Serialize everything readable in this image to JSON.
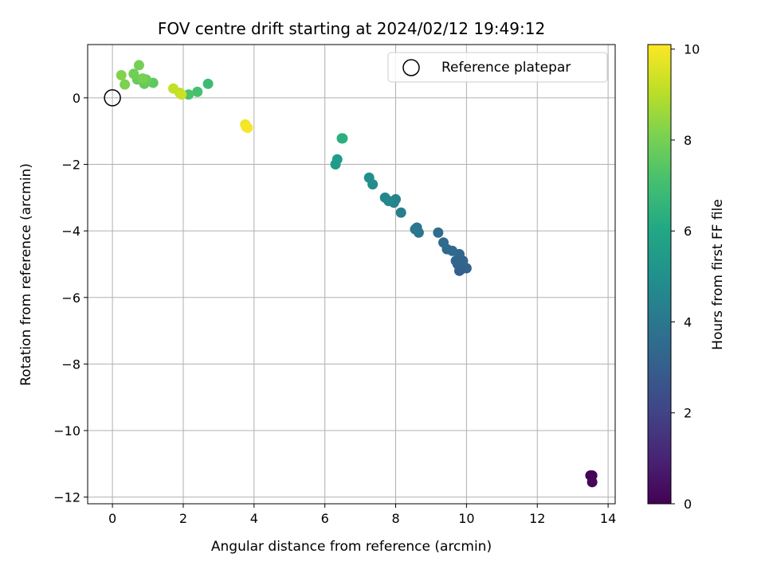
{
  "chart_data": {
    "type": "scatter",
    "title": "FOV centre drift starting at 2024/02/12 19:49:12",
    "xlabel": "Angular distance from reference (arcmin)",
    "ylabel": "Rotation from reference (arcmin)",
    "xlim": [
      -0.7,
      14.2
    ],
    "ylim": [
      -12.2,
      1.6
    ],
    "xticks": [
      0,
      2,
      4,
      6,
      8,
      10,
      12,
      14
    ],
    "yticks": [
      -12,
      -10,
      -8,
      -6,
      -4,
      -2,
      0
    ],
    "x_tick_labels": [
      "0",
      "2",
      "4",
      "6",
      "8",
      "10",
      "12",
      "14"
    ],
    "y_tick_labels": [
      "−12",
      "−10",
      "−8",
      "−6",
      "−4",
      "−2",
      "0"
    ],
    "grid": true,
    "legend": {
      "placement": "top-right",
      "label": "Reference platepar"
    },
    "reference_point": {
      "x": 0,
      "y": 0
    },
    "colorbar": {
      "label": "Hours from first FF file",
      "range": [
        0,
        10.1
      ],
      "ticks": [
        0,
        2,
        4,
        6,
        8,
        10
      ],
      "tick_labels": [
        "0",
        "2",
        "4",
        "6",
        "8",
        "10"
      ],
      "colormap": "viridis"
    },
    "points": [
      {
        "x": 13.5,
        "y": -11.35,
        "hours": 0.05
      },
      {
        "x": 13.55,
        "y": -11.35,
        "hours": 0.1
      },
      {
        "x": 13.55,
        "y": -11.55,
        "hours": 0.15
      },
      {
        "x": 9.85,
        "y": -5.15,
        "hours": 3.0
      },
      {
        "x": 9.8,
        "y": -5.2,
        "hours": 3.05
      },
      {
        "x": 9.9,
        "y": -5.05,
        "hours": 3.1
      },
      {
        "x": 10.0,
        "y": -5.12,
        "hours": 3.15
      },
      {
        "x": 9.75,
        "y": -5.0,
        "hours": 3.2
      },
      {
        "x": 9.7,
        "y": -4.9,
        "hours": 3.25
      },
      {
        "x": 9.9,
        "y": -4.9,
        "hours": 3.3
      },
      {
        "x": 9.8,
        "y": -4.7,
        "hours": 3.35
      },
      {
        "x": 9.6,
        "y": -4.6,
        "hours": 3.4
      },
      {
        "x": 9.45,
        "y": -4.55,
        "hours": 3.45
      },
      {
        "x": 9.35,
        "y": -4.35,
        "hours": 3.5
      },
      {
        "x": 9.2,
        "y": -4.05,
        "hours": 3.6
      },
      {
        "x": 8.6,
        "y": -3.9,
        "hours": 3.9
      },
      {
        "x": 8.65,
        "y": -4.05,
        "hours": 3.95
      },
      {
        "x": 8.55,
        "y": -3.95,
        "hours": 4.0
      },
      {
        "x": 8.15,
        "y": -3.45,
        "hours": 4.3
      },
      {
        "x": 8.0,
        "y": -3.05,
        "hours": 4.5
      },
      {
        "x": 7.95,
        "y": -3.15,
        "hours": 4.55
      },
      {
        "x": 7.7,
        "y": -3.0,
        "hours": 4.6
      },
      {
        "x": 7.8,
        "y": -3.1,
        "hours": 4.65
      },
      {
        "x": 7.35,
        "y": -2.6,
        "hours": 4.9
      },
      {
        "x": 7.25,
        "y": -2.4,
        "hours": 5.0
      },
      {
        "x": 6.3,
        "y": -2.0,
        "hours": 5.5
      },
      {
        "x": 6.35,
        "y": -1.85,
        "hours": 5.55
      },
      {
        "x": 6.5,
        "y": -1.22,
        "hours": 6.3
      },
      {
        "x": 6.48,
        "y": -1.22,
        "hours": 6.35
      },
      {
        "x": 2.7,
        "y": 0.42,
        "hours": 6.9
      },
      {
        "x": 2.4,
        "y": 0.18,
        "hours": 7.1
      },
      {
        "x": 2.15,
        "y": 0.1,
        "hours": 7.2
      },
      {
        "x": 1.15,
        "y": 0.45,
        "hours": 7.6
      },
      {
        "x": 0.9,
        "y": 0.42,
        "hours": 7.7
      },
      {
        "x": 0.7,
        "y": 0.55,
        "hours": 7.75
      },
      {
        "x": 0.95,
        "y": 0.55,
        "hours": 7.8
      },
      {
        "x": 0.6,
        "y": 0.72,
        "hours": 7.9
      },
      {
        "x": 0.75,
        "y": 0.98,
        "hours": 7.95
      },
      {
        "x": 0.85,
        "y": 0.58,
        "hours": 8.0
      },
      {
        "x": 0.35,
        "y": 0.4,
        "hours": 8.1
      },
      {
        "x": 0.25,
        "y": 0.68,
        "hours": 8.2
      },
      {
        "x": 1.9,
        "y": 0.15,
        "hours": 9.1
      },
      {
        "x": 1.72,
        "y": 0.28,
        "hours": 9.2
      },
      {
        "x": 1.95,
        "y": 0.1,
        "hours": 9.3
      },
      {
        "x": 3.75,
        "y": -0.8,
        "hours": 9.9
      },
      {
        "x": 3.78,
        "y": -0.88,
        "hours": 9.95
      },
      {
        "x": 3.82,
        "y": -0.9,
        "hours": 10.0
      }
    ]
  }
}
